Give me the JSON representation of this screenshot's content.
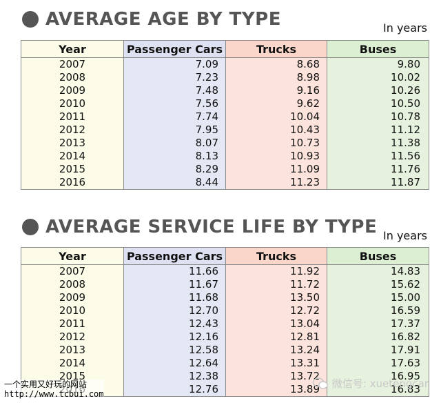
{
  "sections": [
    {
      "title": "AVERAGE AGE BY TYPE",
      "unit": "In years",
      "columns": [
        "Year",
        "Passenger Cars",
        "Trucks",
        "Buses"
      ],
      "rows": [
        [
          "2007",
          "7.09",
          "8.68",
          "9.80"
        ],
        [
          "2008",
          "7.23",
          "8.98",
          "10.02"
        ],
        [
          "2009",
          "7.48",
          "9.16",
          "10.26"
        ],
        [
          "2010",
          "7.56",
          "9.62",
          "10.50"
        ],
        [
          "2011",
          "7.74",
          "10.04",
          "10.78"
        ],
        [
          "2012",
          "7.95",
          "10.43",
          "11.12"
        ],
        [
          "2013",
          "8.07",
          "10.73",
          "11.38"
        ],
        [
          "2014",
          "8.13",
          "10.93",
          "11.56"
        ],
        [
          "2015",
          "8.29",
          "11.09",
          "11.76"
        ],
        [
          "2016",
          "8.44",
          "11.23",
          "11.87"
        ]
      ]
    },
    {
      "title": "AVERAGE SERVICE LIFE BY TYPE",
      "unit": "In years",
      "columns": [
        "Year",
        "Passenger Cars",
        "Trucks",
        "Buses"
      ],
      "rows": [
        [
          "2007",
          "11.66",
          "11.92",
          "14.83"
        ],
        [
          "2008",
          "11.67",
          "11.72",
          "15.62"
        ],
        [
          "2009",
          "11.68",
          "13.50",
          "15.00"
        ],
        [
          "2010",
          "12.70",
          "12.72",
          "16.59"
        ],
        [
          "2011",
          "12.43",
          "13.04",
          "17.37"
        ],
        [
          "2012",
          "12.16",
          "12.81",
          "16.82"
        ],
        [
          "2013",
          "12.58",
          "13.24",
          "17.91"
        ],
        [
          "2014",
          "12.64",
          "13.31",
          "17.63"
        ],
        [
          "2015",
          "12.38",
          "13.72",
          "16.95"
        ],
        [
          "2016",
          "12.76",
          "13.89",
          "16.83"
        ]
      ]
    }
  ],
  "watermark": {
    "left_line1": "一个实用又好玩的网站",
    "left_line2": "http://www.tcbui.com",
    "right_text": "微信号: xuetengcar"
  },
  "colors": {
    "year_bg": "#fdfce8",
    "cars_bg": "#e4e7f4",
    "trucks_bg": "#fce3dc",
    "buses_bg": "#e6f2de",
    "title_gray": "#555555"
  }
}
